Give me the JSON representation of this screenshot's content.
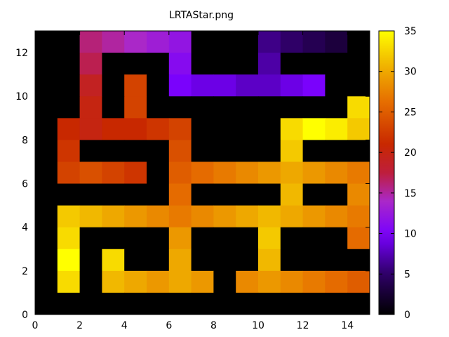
{
  "chart_data": {
    "type": "heatmap",
    "title": "LRTAStar.png",
    "xlabel": "",
    "ylabel": "",
    "xlim": [
      0,
      15
    ],
    "ylim": [
      0,
      13
    ],
    "x_ticks": [
      "0",
      "2",
      "4",
      "6",
      "8",
      "10",
      "12",
      "14"
    ],
    "y_ticks": [
      "0",
      "2",
      "4",
      "6",
      "8",
      "10",
      "12"
    ],
    "colorbar": {
      "min": 0,
      "max": 35,
      "ticks": [
        "0",
        "5",
        "10",
        "15",
        "20",
        "25",
        "30",
        "35"
      ],
      "palette": "black-blue-magenta-red-orange-yellow"
    },
    "grid": false,
    "rows_top_to_bottom": [
      [
        0,
        0,
        16,
        15,
        14,
        13,
        12,
        0,
        0,
        0,
        6,
        5,
        4,
        3,
        0
      ],
      [
        0,
        0,
        17,
        0,
        0,
        0,
        11,
        0,
        0,
        0,
        7,
        0,
        0,
        0,
        0
      ],
      [
        0,
        0,
        19,
        0,
        23,
        0,
        10,
        9,
        9,
        8,
        8,
        9,
        10,
        0,
        0
      ],
      [
        0,
        0,
        20,
        0,
        23,
        0,
        0,
        0,
        0,
        0,
        0,
        0,
        0,
        0,
        33
      ],
      [
        0,
        21,
        20,
        21,
        21,
        22,
        23,
        0,
        0,
        0,
        0,
        33,
        35,
        34,
        32
      ],
      [
        0,
        22,
        0,
        0,
        0,
        0,
        24,
        0,
        0,
        0,
        0,
        32,
        0,
        0,
        0
      ],
      [
        0,
        23,
        24,
        23,
        22,
        0,
        25,
        26,
        27,
        28,
        29,
        30,
        29,
        28,
        27
      ],
      [
        0,
        0,
        0,
        0,
        0,
        0,
        26,
        0,
        0,
        0,
        0,
        31,
        0,
        0,
        28
      ],
      [
        0,
        32,
        31,
        30,
        29,
        28,
        27,
        28,
        29,
        30,
        31,
        30,
        29,
        28,
        27
      ],
      [
        0,
        33,
        0,
        0,
        0,
        0,
        29,
        0,
        0,
        0,
        32,
        0,
        0,
        0,
        26
      ],
      [
        0,
        35,
        0,
        33,
        0,
        0,
        30,
        0,
        0,
        0,
        31,
        0,
        0,
        0,
        0
      ],
      [
        0,
        33,
        0,
        31,
        30,
        29,
        30,
        29,
        0,
        28,
        29,
        28,
        27,
        26,
        25
      ],
      [
        0,
        0,
        0,
        0,
        0,
        0,
        0,
        0,
        0,
        0,
        0,
        0,
        0,
        0,
        0
      ]
    ]
  }
}
